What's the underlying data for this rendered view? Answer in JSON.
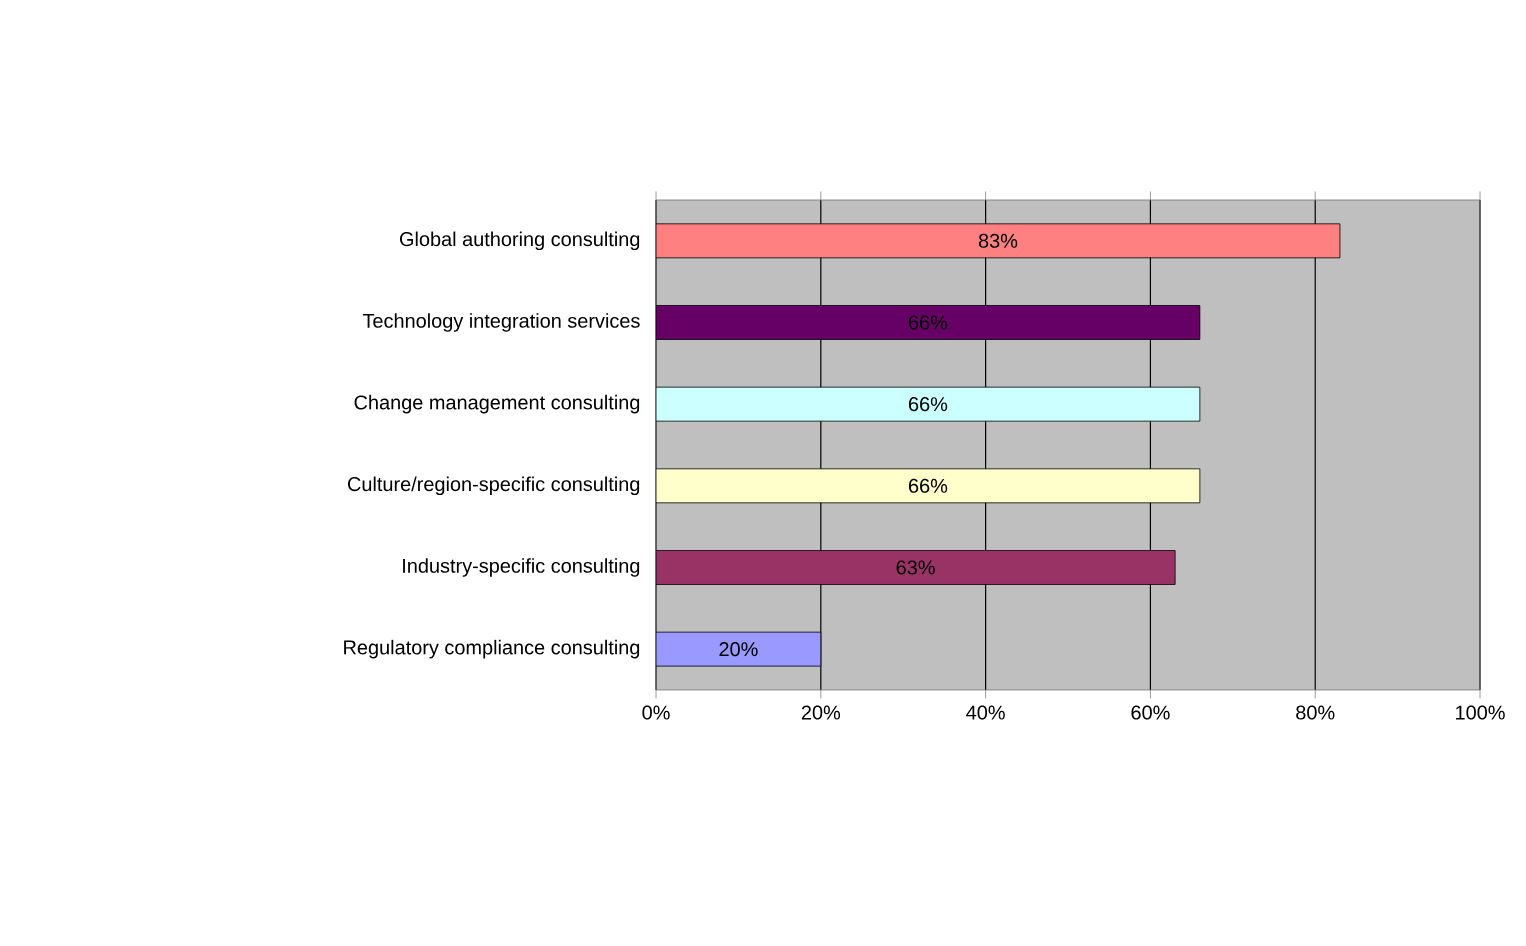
{
  "chart_data": {
    "type": "bar",
    "orientation": "horizontal",
    "categories": [
      "Global authoring consulting",
      "Technology integration services",
      "Change management consulting",
      "Culture/region-specific consulting",
      "Industry-specific consulting",
      "Regulatory compliance consulting"
    ],
    "values": [
      83,
      66,
      66,
      66,
      63,
      20
    ],
    "value_labels": [
      "83%",
      "66%",
      "66%",
      "66%",
      "63%",
      "20%"
    ],
    "colors": [
      "#ff8080",
      "#660066",
      "#ccffff",
      "#ffffcc",
      "#993366",
      "#9999ff"
    ],
    "xlim": [
      0,
      100
    ],
    "xticks": [
      {
        "value": 0,
        "label": "0%"
      },
      {
        "value": 20,
        "label": "20%"
      },
      {
        "value": 40,
        "label": "40%"
      },
      {
        "value": 60,
        "label": "60%"
      },
      {
        "value": 80,
        "label": "80%"
      },
      {
        "value": 100,
        "label": "100%"
      }
    ],
    "grid": "x"
  }
}
